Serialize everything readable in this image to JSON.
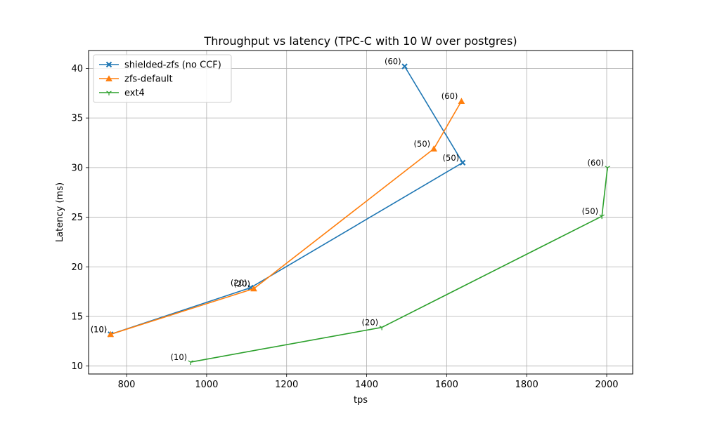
{
  "chart_data": {
    "type": "line",
    "title": "Throughput vs latency (TPC-C with 10 W over postgres)",
    "xlabel": "tps",
    "ylabel": "Latency (ms)",
    "xlim": [
      705,
      2065
    ],
    "ylim": [
      9.2,
      41.8
    ],
    "xticks": [
      800,
      1000,
      1200,
      1400,
      1600,
      1800,
      2000
    ],
    "yticks": [
      10,
      15,
      20,
      25,
      30,
      35,
      40
    ],
    "grid": true,
    "legend_position": "top-left",
    "series": [
      {
        "name": "shielded-zfs (no CCF)",
        "color": "#1f77b4",
        "marker": "X",
        "points": [
          {
            "x": 760,
            "y": 13.2,
            "label": "(10)"
          },
          {
            "x": 1110,
            "y": 17.9,
            "label": "(20)"
          },
          {
            "x": 1640,
            "y": 30.5,
            "label": "(50)"
          },
          {
            "x": 1495,
            "y": 40.2,
            "label": "(60)"
          }
        ]
      },
      {
        "name": "zfs-default",
        "color": "#ff7f0e",
        "marker": "triangle",
        "points": [
          {
            "x": 760,
            "y": 13.2,
            "label": "(10)"
          },
          {
            "x": 1118,
            "y": 17.8,
            "label": "(20)"
          },
          {
            "x": 1568,
            "y": 31.9,
            "label": "(50)"
          },
          {
            "x": 1637,
            "y": 36.7,
            "label": "(60)"
          }
        ]
      },
      {
        "name": "ext4",
        "color": "#2ca02c",
        "marker": "tri_down",
        "points": [
          {
            "x": 960,
            "y": 10.4,
            "label": "(10)"
          },
          {
            "x": 1438,
            "y": 13.9,
            "label": "(20)"
          },
          {
            "x": 1988,
            "y": 25.1,
            "label": "(50)"
          },
          {
            "x": 2002,
            "y": 30.0,
            "label": "(60)"
          }
        ]
      }
    ]
  }
}
